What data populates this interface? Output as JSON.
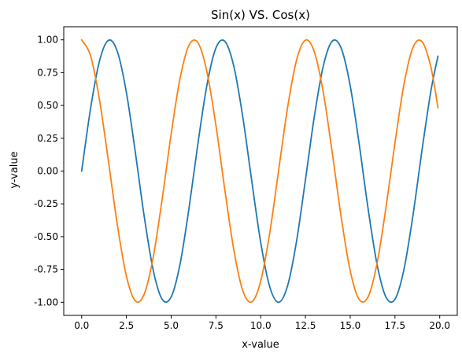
{
  "chart_data": {
    "type": "line",
    "title": "Sin(x) VS. Cos(x)",
    "xlabel": "x-value",
    "ylabel": "y-value",
    "xlim": [
      -1.0,
      20.98
    ],
    "ylim": [
      -1.1,
      1.1
    ],
    "x_ticks": [
      0.0,
      2.5,
      5.0,
      7.5,
      10.0,
      12.5,
      15.0,
      17.5,
      20.0
    ],
    "x_tick_labels": [
      "0.0",
      "2.5",
      "5.0",
      "7.5",
      "10.0",
      "12.5",
      "15.0",
      "17.5",
      "20.0"
    ],
    "y_ticks": [
      -1.0,
      -0.75,
      -0.5,
      -0.25,
      0.0,
      0.25,
      0.5,
      0.75,
      1.0
    ],
    "y_tick_labels": [
      "-1.00",
      "-0.75",
      "-0.50",
      "-0.25",
      "0.00",
      "0.25",
      "0.50",
      "0.75",
      "1.00"
    ],
    "grid": false,
    "legend": false,
    "x": [
      0.0,
      0.5,
      1.0,
      1.5,
      2.0,
      2.5,
      3.0,
      3.5,
      4.0,
      4.5,
      5.0,
      5.5,
      6.0,
      6.5,
      7.0,
      7.5,
      8.0,
      8.5,
      9.0,
      9.5,
      10.0,
      10.5,
      11.0,
      11.5,
      12.0,
      12.5,
      13.0,
      13.5,
      14.0,
      14.5,
      15.0,
      15.5,
      16.0,
      16.5,
      17.0,
      17.5,
      18.0,
      18.5,
      19.0,
      19.5,
      19.9
    ],
    "series": [
      {
        "color": "#1f77b4",
        "values": [
          0.0,
          0.479,
          0.841,
          0.997,
          0.909,
          0.598,
          0.141,
          -0.351,
          -0.757,
          -0.978,
          -0.959,
          -0.706,
          -0.279,
          0.215,
          0.657,
          0.938,
          0.989,
          0.798,
          0.412,
          -0.075,
          -0.544,
          -0.88,
          -1.0,
          -0.875,
          -0.537,
          -0.066,
          0.42,
          0.803,
          0.991,
          0.935,
          0.65,
          0.207,
          -0.288,
          -0.712,
          -0.961,
          -0.977,
          -0.751,
          -0.342,
          0.15,
          0.605,
          0.875
        ]
      },
      {
        "color": "#ff7f0e",
        "values": [
          1.0,
          0.878,
          0.54,
          0.071,
          -0.416,
          -0.801,
          -0.99,
          -0.936,
          -0.654,
          -0.211,
          0.284,
          0.709,
          0.96,
          0.977,
          0.754,
          0.347,
          -0.146,
          -0.602,
          -0.911,
          -0.997,
          -0.839,
          -0.476,
          0.004,
          0.483,
          0.844,
          0.998,
          0.907,
          0.595,
          0.137,
          -0.355,
          -0.76,
          -0.978,
          -0.958,
          -0.703,
          -0.275,
          0.215,
          0.66,
          0.94,
          0.988,
          0.796,
          0.484
        ]
      }
    ]
  }
}
